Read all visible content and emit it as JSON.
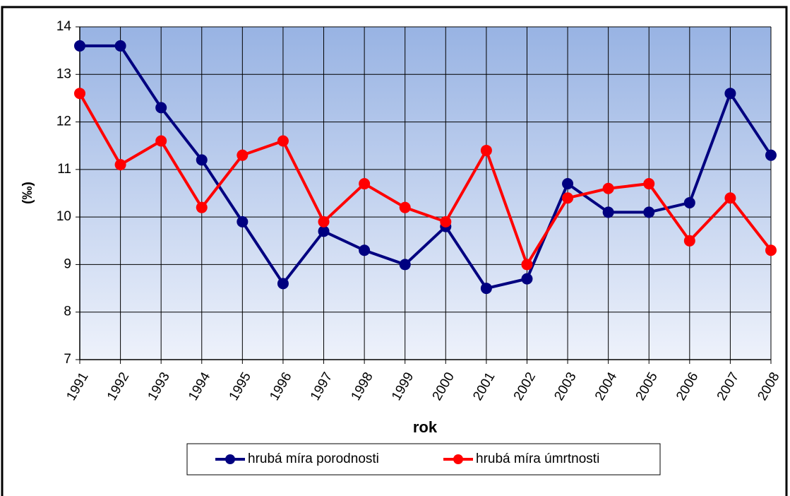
{
  "chart_data": {
    "type": "line",
    "x_label": "rok",
    "y_label": "(‰)",
    "categories": [
      "1991",
      "1992",
      "1993",
      "1994",
      "1995",
      "1996",
      "1997",
      "1998",
      "1999",
      "2000",
      "2001",
      "2002",
      "2003",
      "2004",
      "2005",
      "2006",
      "2007",
      "2008"
    ],
    "series": [
      {
        "name": "hrubá míra porodnosti",
        "color": "#000080",
        "values": [
          13.6,
          13.6,
          12.3,
          11.2,
          9.9,
          8.6,
          9.7,
          9.3,
          9.0,
          9.8,
          8.5,
          8.7,
          10.7,
          10.1,
          10.1,
          10.3,
          12.6,
          11.3
        ]
      },
      {
        "name": "hrubá míra úmrtnosti",
        "color": "#ff0000",
        "values": [
          12.6,
          11.1,
          11.6,
          10.2,
          11.3,
          11.6,
          9.9,
          10.7,
          10.2,
          9.9,
          11.4,
          9.0,
          10.4,
          10.6,
          10.7,
          9.5,
          10.4,
          9.3
        ]
      }
    ],
    "ylim": [
      7,
      14
    ],
    "yticks": [
      7,
      8,
      9,
      10,
      11,
      12,
      13,
      14
    ],
    "grid": true,
    "legend": "bottom"
  }
}
